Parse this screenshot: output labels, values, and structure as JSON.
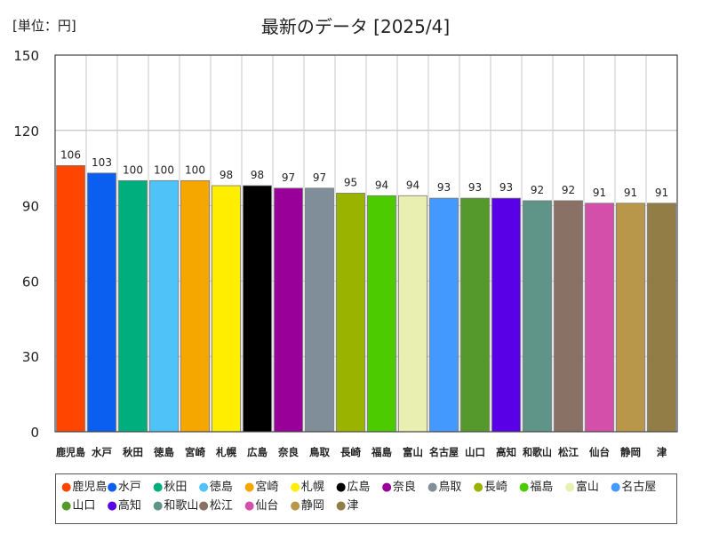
{
  "unit_label": "[単位：円]",
  "chart_data": {
    "type": "bar",
    "title": "最新のデータ [2025/4]",
    "xlabel": "",
    "ylabel": "",
    "ylim": [
      0,
      150
    ],
    "yticks": [
      0,
      30,
      60,
      90,
      120,
      150
    ],
    "grid": true,
    "legend_position": "bottom",
    "categories": [
      "鹿児島",
      "水戸",
      "秋田",
      "徳島",
      "宮崎",
      "札幌",
      "広島",
      "奈良",
      "鳥取",
      "長崎",
      "福島",
      "富山",
      "名古屋",
      "山口",
      "高知",
      "和歌山",
      "松江",
      "仙台",
      "静岡",
      "津"
    ],
    "values": [
      106,
      103,
      100,
      100,
      100,
      98,
      98,
      97,
      97,
      95,
      94,
      94,
      93,
      93,
      93,
      92,
      92,
      91,
      91,
      91
    ],
    "colors": [
      "#ff4500",
      "#0a5ef0",
      "#00ad7c",
      "#4fc3f7",
      "#f5a700",
      "#ffee00",
      "#000000",
      "#99009a",
      "#808e99",
      "#9ab300",
      "#4ccc00",
      "#e8efb0",
      "#4499ff",
      "#55992c",
      "#5a00e6",
      "#5f9488",
      "#8a7166",
      "#d44faa",
      "#b8964a",
      "#937d47"
    ]
  }
}
